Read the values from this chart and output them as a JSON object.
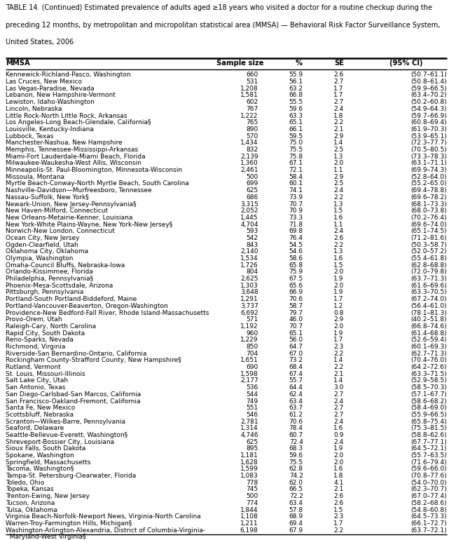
{
  "title_line1": "TABLE 14. (Continued) Estimated prevalence of adults aged ≥18 years who visited a doctor for a routine checkup during the",
  "title_line2": "preceding 12 months, by metropolitan and micropolitan statistical area (MMSA) — Behavioral Risk Factor Surveillance System,",
  "title_line3": "United States, 2006",
  "col_headers": [
    "MMSA",
    "Sample size",
    "%",
    "SE",
    "(95% CI)"
  ],
  "rows": [
    [
      "Kennewick-Richland-Pasco, Washington",
      "660",
      "55.9",
      "2.6",
      "(50.7–61.1)"
    ],
    [
      "Las Cruces, New Mexico",
      "531",
      "56.1",
      "2.7",
      "(50.8–61.4)"
    ],
    [
      "Las Vegas-Paradise, Nevada",
      "1,208",
      "63.2",
      "1.7",
      "(59.9–66.5)"
    ],
    [
      "Lebanon, New Hampshire-Vermont",
      "1,581",
      "66.8",
      "1.7",
      "(63.4–70.2)"
    ],
    [
      "Lewiston, Idaho-Washington",
      "602",
      "55.5",
      "2.7",
      "(50.2–60.8)"
    ],
    [
      "Lincoln, Nebraska",
      "767",
      "59.6",
      "2.4",
      "(54.9–64.3)"
    ],
    [
      "Little Rock-North Little Rock, Arkansas",
      "1,222",
      "63.3",
      "1.8",
      "(59.7–66.9)"
    ],
    [
      "Los Angeles-Long Beach-Glendale, California§",
      "765",
      "65.1",
      "2.2",
      "(60.8–69.4)"
    ],
    [
      "Louisville, Kentucky-Indiana",
      "890",
      "66.1",
      "2.1",
      "(61.9–70.3)"
    ],
    [
      "Lubbock, Texas",
      "570",
      "59.5",
      "2.9",
      "(53.9–65.1)"
    ],
    [
      "Manchester-Nashua, New Hampshire",
      "1,434",
      "75.0",
      "1.4",
      "(72.3–77.7)"
    ],
    [
      "Memphis, Tennessee-Mississippi-Arkansas",
      "832",
      "75.5",
      "2.5",
      "(70.5–80.5)"
    ],
    [
      "Miami-Fort Lauderdale-Miami Beach, Florida",
      "2,139",
      "75.8",
      "1.3",
      "(73.3–78.3)"
    ],
    [
      "Milwaukee-Waukesha-West Allis, Wisconsin",
      "1,360",
      "67.1",
      "2.0",
      "(63.1–71.1)"
    ],
    [
      "Minneapolis-St. Paul-Bloomington, Minnesota-Wisconsin",
      "2,461",
      "72.1",
      "1.1",
      "(69.9–74.3)"
    ],
    [
      "Missoula, Montana",
      "500",
      "58.4",
      "2.9",
      "(52.8–64.0)"
    ],
    [
      "Myrtle Beach-Conway-North Myrtle Beach, South Carolina",
      "699",
      "60.1",
      "2.5",
      "(55.2–65.0)"
    ],
    [
      "Nashville-Davidson—Murfreesboro, Tennessee",
      "625",
      "74.1",
      "2.4",
      "(69.4–78.8)"
    ],
    [
      "Nassau-Suffolk, New York§",
      "686",
      "73.9",
      "2.2",
      "(69.6–78.2)"
    ],
    [
      "Newark-Union, New Jersey-Pennsylvania§",
      "3,315",
      "70.7",
      "1.3",
      "(68.1–73.3)"
    ],
    [
      "New Haven-Milford, Connecticut",
      "2,052",
      "70.9",
      "1.5",
      "(68.0–73.8)"
    ],
    [
      "New Orleans-Metairie-Kenner, Louisiana",
      "1,445",
      "73.3",
      "1.6",
      "(70.2–76.4)"
    ],
    [
      "New York-White Plains-Wayne, New York-New Jersey§",
      "4,704",
      "71.8",
      "1.1",
      "(69.6–74.0)"
    ],
    [
      "Norwich-New London, Connecticut",
      "593",
      "69.8",
      "2.4",
      "(65.1–74.5)"
    ],
    [
      "Ocean City, New Jersey",
      "542",
      "76.4",
      "2.6",
      "(71.2–81.6)"
    ],
    [
      "Ogden-Clearfield, Utah",
      "843",
      "54.5",
      "2.2",
      "(50.3–58.7)"
    ],
    [
      "Oklahoma City, Oklahoma",
      "2,140",
      "54.6",
      "1.3",
      "(52.0–57.2)"
    ],
    [
      "Olympia, Washington",
      "1,534",
      "58.6",
      "1.6",
      "(55.4–61.8)"
    ],
    [
      "Omaha-Council Bluffs, Nebraska-Iowa",
      "1,726",
      "65.8",
      "1.5",
      "(62.8–68.8)"
    ],
    [
      "Orlando-Kissimmee, Florida",
      "804",
      "75.9",
      "2.0",
      "(72.0–79.8)"
    ],
    [
      "Philadelphia, Pennsylvania§",
      "2,625",
      "67.5",
      "1.9",
      "(63.7–71.3)"
    ],
    [
      "Phoenix-Mesa-Scottsdale, Arizona",
      "1,303",
      "65.6",
      "2.0",
      "(61.6–69.6)"
    ],
    [
      "Pittsburgh, Pennsylvania",
      "3,648",
      "66.9",
      "1.9",
      "(63.3–70.5)"
    ],
    [
      "Portland-South Portland-Biddeford, Maine",
      "1,291",
      "70.6",
      "1.7",
      "(67.2–74.0)"
    ],
    [
      "Portland-Vancouver-Beaverton, Oregon-Washington",
      "3,737",
      "58.7",
      "1.2",
      "(56.4–61.0)"
    ],
    [
      "Providence-New Bedford-Fall River, Rhode Island-Massachusetts",
      "6,692",
      "79.7",
      "0.8",
      "(78.1–81.3)"
    ],
    [
      "Provo-Orem, Utah",
      "571",
      "46.0",
      "2.9",
      "(40.2–51.8)"
    ],
    [
      "Raleigh-Cary, North Carolina",
      "1,192",
      "70.7",
      "2.0",
      "(66.8–74.6)"
    ],
    [
      "Rapid City, South Dakota",
      "960",
      "65.1",
      "1.9",
      "(61.4–68.8)"
    ],
    [
      "Reno-Sparks, Nevada",
      "1,229",
      "56.0",
      "1.7",
      "(52.6–59.4)"
    ],
    [
      "Richmond, Virginia",
      "850",
      "64.7",
      "2.3",
      "(60.1–69.3)"
    ],
    [
      "Riverside-San Bernardino-Ontario, California",
      "704",
      "67.0",
      "2.2",
      "(62.7–71.3)"
    ],
    [
      "Rockingham County-Strafford County, New Hampshire§",
      "1,651",
      "73.2",
      "1.4",
      "(70.4–76.0)"
    ],
    [
      "Rutland, Vermont",
      "690",
      "68.4",
      "2.2",
      "(64.2–72.6)"
    ],
    [
      "St. Louis, Missouri-Illinois",
      "1,598",
      "67.4",
      "2.1",
      "(63.3–71.5)"
    ],
    [
      "Salt Lake City, Utah",
      "2,177",
      "55.7",
      "1.4",
      "(52.9–58.5)"
    ],
    [
      "San Antonio, Texas",
      "536",
      "64.4",
      "3.0",
      "(58.5–70.3)"
    ],
    [
      "San Diego-Carlsbad-San Marcos, California",
      "544",
      "62.4",
      "2.7",
      "(57.1–67.7)"
    ],
    [
      "San Francisco-Oakland-Fremont, California",
      "749",
      "63.4",
      "2.4",
      "(58.6–68.2)"
    ],
    [
      "Santa Fe, New Mexico",
      "551",
      "63.7",
      "2.7",
      "(58.4–69.0)"
    ],
    [
      "Scottsbluff, Nebraska",
      "546",
      "61.2",
      "2.7",
      "(55.9–66.5)"
    ],
    [
      "Scranton—Wilkes-Barre, Pennsylvania",
      "2,781",
      "70.6",
      "2.4",
      "(65.8–75.4)"
    ],
    [
      "Seaford, Delaware",
      "1,314",
      "78.4",
      "1.6",
      "(75.3–81.5)"
    ],
    [
      "Seattle-Bellevue-Everett, Washington§",
      "4,746",
      "60.7",
      "0.9",
      "(58.8–62.6)"
    ],
    [
      "Shreveport-Bossier City, Louisiana",
      "625",
      "72.4",
      "2.4",
      "(67.7–77.1)"
    ],
    [
      "Sioux Falls, South Dakota",
      "895",
      "68.3",
      "1.9",
      "(64.5–72.1)"
    ],
    [
      "Spokane, Washington",
      "1,181",
      "59.6",
      "2.0",
      "(55.7–63.5)"
    ],
    [
      "Springfield, Massachusetts",
      "1,628",
      "75.5",
      "2.0",
      "(71.6–79.4)"
    ],
    [
      "Tacoma, Washington§",
      "1,599",
      "62.8",
      "1.6",
      "(59.6–66.0)"
    ],
    [
      "Tampa-St. Petersburg-Clearwater, Florida",
      "1,083",
      "74.2",
      "1.8",
      "(70.8–77.6)"
    ],
    [
      "Toledo, Ohio",
      "778",
      "62.0",
      "4.1",
      "(54.0–70.0)"
    ],
    [
      "Topeka, Kansas",
      "745",
      "66.5",
      "2.1",
      "(62.3–70.7)"
    ],
    [
      "Trenton-Ewing, New Jersey",
      "500",
      "72.2",
      "2.6",
      "(67.0–77.4)"
    ],
    [
      "Tucson, Arizona",
      "774",
      "63.4",
      "2.6",
      "(58.2–68.6)"
    ],
    [
      "Tulsa, Oklahoma",
      "1,844",
      "57.8",
      "1.5",
      "(54.8–60.8)"
    ],
    [
      "Virginia Beach-Norfolk-Newport News, Virginia-North Carolina",
      "1,108",
      "68.9",
      "2.3",
      "(64.5–73.3)"
    ],
    [
      "Warren-Troy-Farmington Hills, Michigan§",
      "1,211",
      "69.4",
      "1.7",
      "(66.1–72.7)"
    ],
    [
      "Washington-Arlington-Alexandria, District of Columbia-Virginia-\n  Maryland-West Virginia§",
      "6,198",
      "67.9",
      "2.2",
      "(63.7–72.1)"
    ]
  ],
  "font_size_title": 7.0,
  "font_size_header": 7.2,
  "font_size_data": 6.5,
  "bg_color": "white",
  "text_color": "black",
  "line_color": "black"
}
